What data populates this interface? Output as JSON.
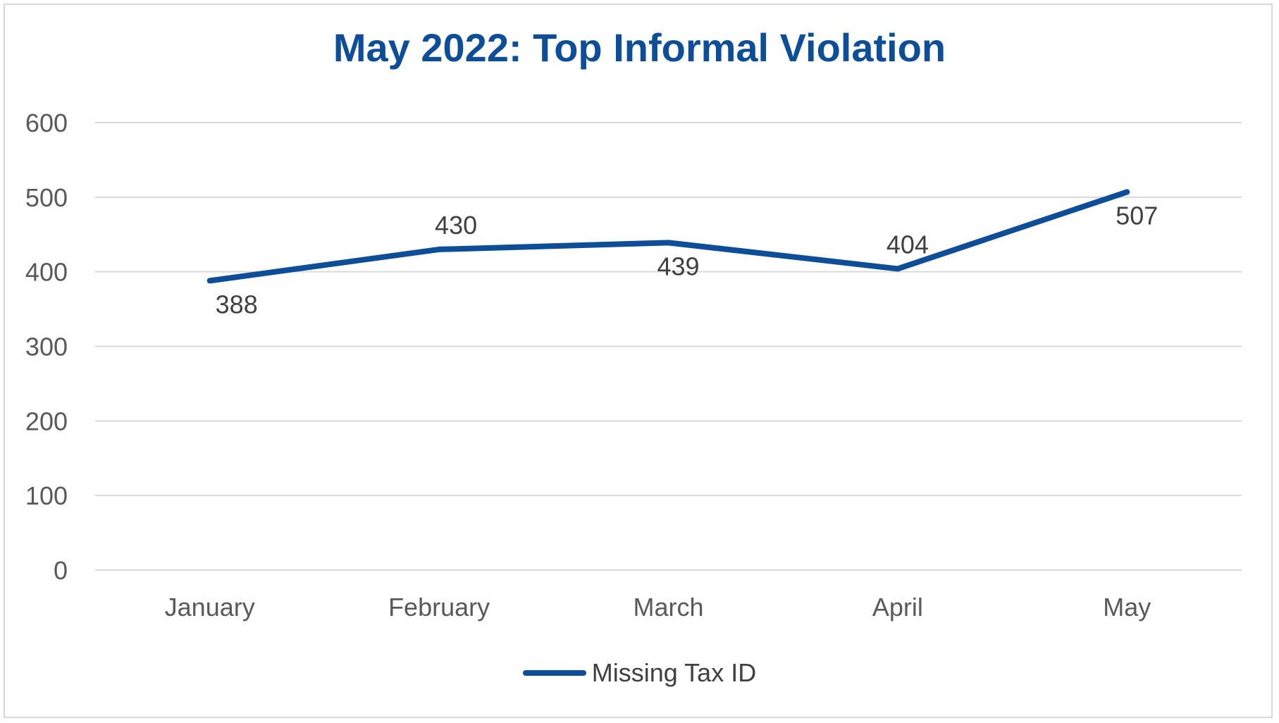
{
  "chart_data": {
    "type": "line",
    "title": "May 2022: Top Informal Violation",
    "categories": [
      "January",
      "February",
      "March",
      "April",
      "May"
    ],
    "series": [
      {
        "name": "Missing Tax ID",
        "values": [
          388,
          430,
          439,
          404,
          507
        ],
        "color": "#0e4d97"
      }
    ],
    "y_ticks": [
      "0",
      "100",
      "200",
      "300",
      "400",
      "500",
      "600"
    ],
    "ylim": [
      0,
      600
    ],
    "xlabel": "",
    "ylabel": "",
    "grid": true,
    "legend_position": "bottom",
    "data_labels": true
  }
}
